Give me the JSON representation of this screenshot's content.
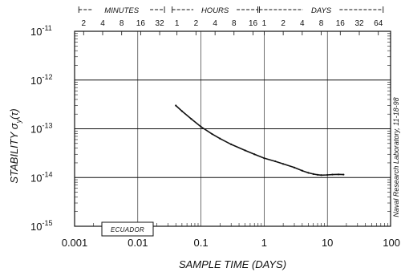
{
  "chart_data": {
    "type": "line",
    "xscale": "log",
    "yscale": "log",
    "xlim": [
      0.001,
      100
    ],
    "ylim": [
      1e-15,
      1e-11
    ],
    "xlabel": "SAMPLE TIME (DAYS)",
    "ylabel": "STABILITY σy(τ)",
    "x_ticks": [
      {
        "value": 0.001,
        "label": "0.001"
      },
      {
        "value": 0.01,
        "label": "0.01"
      },
      {
        "value": 0.1,
        "label": "0.1"
      },
      {
        "value": 1,
        "label": "1"
      },
      {
        "value": 10,
        "label": "10"
      },
      {
        "value": 100,
        "label": "100"
      }
    ],
    "y_ticks": [
      {
        "value": 1e-11,
        "label": "10",
        "exp": "-11"
      },
      {
        "value": 1e-12,
        "label": "10",
        "exp": "-12"
      },
      {
        "value": 1e-13,
        "label": "10",
        "exp": "-13"
      },
      {
        "value": 1e-14,
        "label": "10",
        "exp": "-14"
      },
      {
        "value": 1e-15,
        "label": "10",
        "exp": "-15"
      }
    ],
    "top_axis": {
      "groups": [
        {
          "label": "MINUTES",
          "from": 0.00139,
          "to": 0.0222
        },
        {
          "label": "HOURS",
          "from": 0.0417,
          "to": 0.667
        },
        {
          "label": "DAYS",
          "from": 1,
          "to": 64
        }
      ],
      "ticks": [
        {
          "label": "2",
          "value": 0.00139
        },
        {
          "label": "4",
          "value": 0.00278
        },
        {
          "label": "8",
          "value": 0.00556
        },
        {
          "label": "16",
          "value": 0.0111
        },
        {
          "label": "32",
          "value": 0.0222
        },
        {
          "label": "1",
          "value": 0.0417
        },
        {
          "label": "2",
          "value": 0.0833
        },
        {
          "label": "4",
          "value": 0.167
        },
        {
          "label": "8",
          "value": 0.333
        },
        {
          "label": "16",
          "value": 0.667
        },
        {
          "label": "1",
          "value": 1
        },
        {
          "label": "2",
          "value": 2
        },
        {
          "label": "4",
          "value": 4
        },
        {
          "label": "8",
          "value": 8
        },
        {
          "label": "16",
          "value": 16
        },
        {
          "label": "32",
          "value": 32
        },
        {
          "label": "64",
          "value": 64
        }
      ]
    },
    "series": [
      {
        "name": "ECUADOR",
        "color": "#111111",
        "x": [
          0.04,
          0.05,
          0.07,
          0.1,
          0.15,
          0.2,
          0.3,
          0.5,
          0.7,
          1,
          1.5,
          2,
          3,
          4,
          5,
          6,
          7,
          8,
          10,
          12,
          15,
          18
        ],
        "y": [
          3e-13,
          2.3e-13,
          1.6e-13,
          1.1e-13,
          7.8e-14,
          6.3e-14,
          4.8e-14,
          3.6e-14,
          3e-14,
          2.5e-14,
          2.15e-14,
          1.9e-14,
          1.6e-14,
          1.38e-14,
          1.25e-14,
          1.18e-14,
          1.14e-14,
          1.12e-14,
          1.13e-14,
          1.15e-14,
          1.16e-14,
          1.15e-14
        ]
      }
    ],
    "grid": true,
    "legend": {
      "label": "ECUADOR",
      "position": "bottom-left"
    },
    "annotations": [
      {
        "text": "Naval Research Laboratory, 11-18-98",
        "position": "right-vertical"
      }
    ]
  }
}
